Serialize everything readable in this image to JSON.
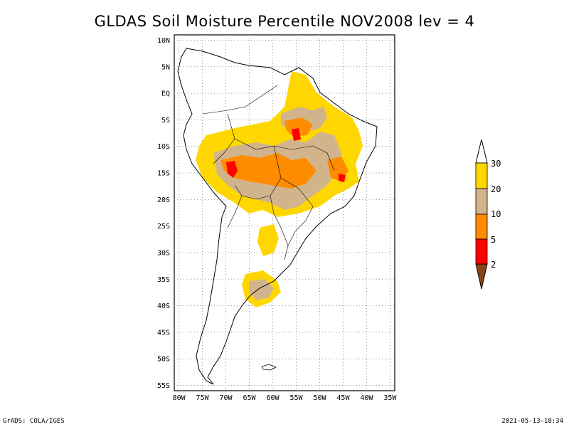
{
  "title": "GLDAS Soil Moisture Percentile NOV2008 lev = 4",
  "footer_left": "GrADS: COLA/IGES",
  "footer_right": "2021-05-13-18:34",
  "axes": {
    "lon_labels": [
      "80W",
      "75W",
      "70W",
      "65W",
      "60W",
      "55W",
      "50W",
      "45W",
      "40W",
      "35W"
    ],
    "lat_labels": [
      "10N",
      "5N",
      "EQ",
      "5S",
      "10S",
      "15S",
      "20S",
      "25S",
      "30S",
      "35S",
      "40S",
      "45S",
      "50S",
      "55S"
    ],
    "lon_range": [
      -81,
      -34
    ],
    "lat_range": [
      -56,
      11
    ],
    "grid": true
  },
  "legend": {
    "labels": [
      "30",
      "20",
      "10",
      "5",
      "2"
    ],
    "colors": {
      "below_2": "#8B4513",
      "2_5": "#FF0000",
      "5_10": "#FF8C00",
      "10_20": "#D2B48C",
      "20_30": "#FFD700",
      "above_30": "#FFFFFF"
    }
  }
}
